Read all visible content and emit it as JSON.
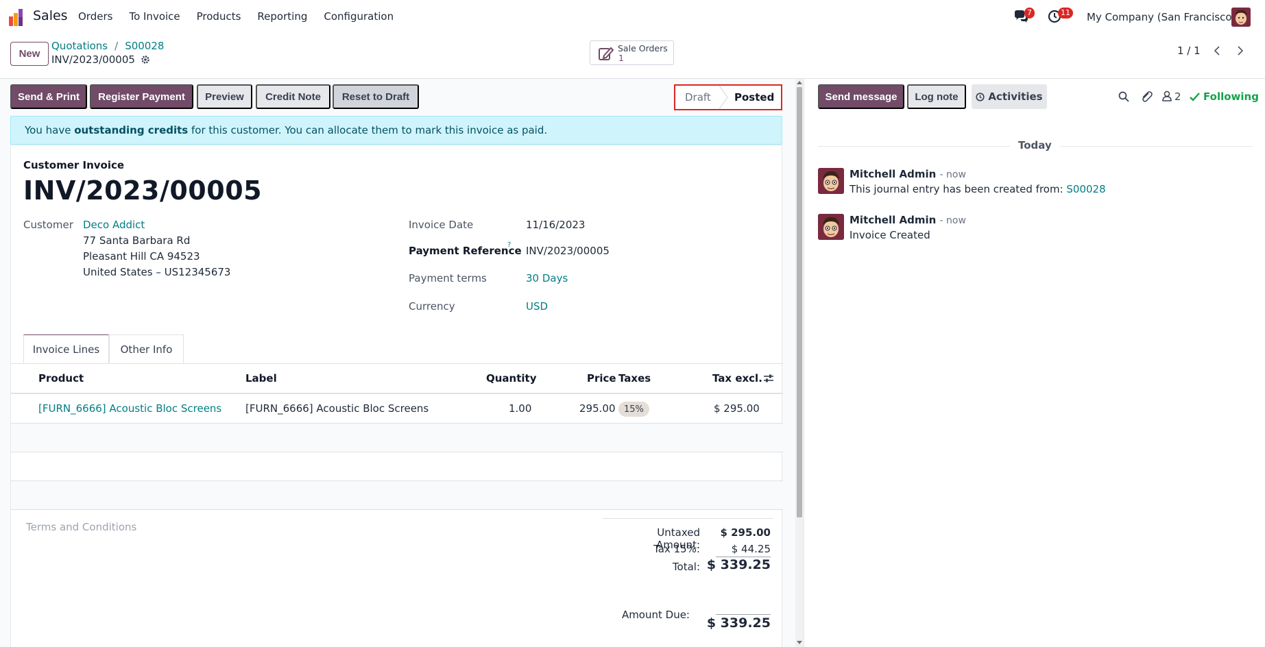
{
  "app": {
    "name": "Sales",
    "logo_icon": "odoo-sales-logo-icon"
  },
  "menu": [
    "Orders",
    "To Invoice",
    "Products",
    "Reporting",
    "Configuration"
  ],
  "systray": {
    "messages_badge": "7",
    "activities_badge": "11",
    "company": "My Company (San Francisco)"
  },
  "control": {
    "new_label": "New",
    "breadcrumb": [
      "Quotations",
      "S00028"
    ],
    "record_name": "INV/2023/00005",
    "smart_button": {
      "label": "Sale Orders",
      "value": "1"
    },
    "pager": "1 / 1"
  },
  "actions": {
    "send_print": "Send & Print",
    "register_payment": "Register Payment",
    "preview": "Preview",
    "credit_note": "Credit Note",
    "reset_draft": "Reset to Draft"
  },
  "stages": {
    "draft": "Draft",
    "posted": "Posted",
    "current": "Posted"
  },
  "alert": {
    "pre": "You have ",
    "bold": "outstanding credits",
    "post": " for this customer. You can allocate them to mark this invoice as paid."
  },
  "invoice": {
    "type_label": "Customer Invoice",
    "number": "INV/2023/00005",
    "customer_label": "Customer",
    "customer_name": "Deco Addict",
    "address": [
      "77 Santa Barbara Rd",
      "Pleasant Hill CA 94523",
      "United States – US12345673"
    ],
    "invoice_date_label": "Invoice Date",
    "invoice_date": "11/16/2023",
    "payment_ref_label": "Payment Reference",
    "payment_ref_help": "?",
    "payment_ref": "INV/2023/00005",
    "payment_terms_label": "Payment terms",
    "payment_terms": "30 Days",
    "currency_label": "Currency",
    "currency": "USD"
  },
  "tabs": {
    "lines": "Invoice Lines",
    "other": "Other Info"
  },
  "table": {
    "headers": {
      "product": "Product",
      "label": "Label",
      "quantity": "Quantity",
      "price": "Price",
      "taxes": "Taxes",
      "tax_excl": "Tax excl."
    },
    "rows": [
      {
        "product": "[FURN_6666] Acoustic Bloc Screens",
        "label": "[FURN_6666] Acoustic Bloc Screens",
        "quantity": "1.00",
        "price": "295.00",
        "taxes": "15%",
        "tax_excl": "$ 295.00"
      }
    ]
  },
  "terms_placeholder": "Terms and Conditions",
  "totals": {
    "untaxed_label": "Untaxed Amount:",
    "untaxed": "$ 295.00",
    "tax_label": "Tax 15%:",
    "tax": "$ 44.25",
    "total_label": "Total:",
    "total": "$ 339.25",
    "due_label": "Amount Due:",
    "due": "$ 339.25"
  },
  "chatter": {
    "send_message": "Send message",
    "log_note": "Log note",
    "activities": "Activities",
    "followers_count": "2",
    "following": "Following",
    "day_separator": "Today",
    "messages": [
      {
        "author": "Mitchell Admin",
        "when": "- now",
        "text": "This journal entry has been created from: ",
        "link": "S00028"
      },
      {
        "author": "Mitchell Admin",
        "when": "- now",
        "text": "Invoice Created",
        "link": ""
      }
    ]
  },
  "colors": {
    "brand": "#714B67",
    "link": "#017e84",
    "alert_bg": "#cff4fc",
    "badge": "#dc2626",
    "following": "#16a34a"
  }
}
